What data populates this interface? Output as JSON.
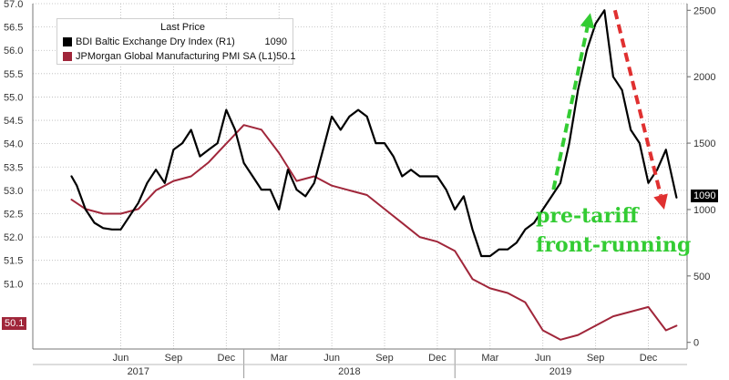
{
  "chart_data": {
    "type": "line",
    "title": "",
    "legend": {
      "header": "Last Price",
      "placement": "top-left",
      "entries": [
        {
          "name": "BDI Baltic Exchange Dry Index  (R1)",
          "last": "1090",
          "color": "#000000"
        },
        {
          "name": "JPMorgan Global Manufacturing PMI SA  (L1)",
          "last": "50.1",
          "color": "#a0263a"
        }
      ]
    },
    "x_ticks": [
      {
        "label": "Jun",
        "t": 5
      },
      {
        "label": "Sep",
        "t": 8
      },
      {
        "label": "Dec",
        "t": 11
      },
      {
        "label": "Mar",
        "t": 14
      },
      {
        "label": "Jun",
        "t": 17
      },
      {
        "label": "Sep",
        "t": 20
      },
      {
        "label": "Dec",
        "t": 23
      },
      {
        "label": "Mar",
        "t": 26
      },
      {
        "label": "Jun",
        "t": 29
      },
      {
        "label": "Sep",
        "t": 32
      },
      {
        "label": "Dec",
        "t": 35
      }
    ],
    "years": [
      {
        "label": "2017",
        "t": 6
      },
      {
        "label": "2018",
        "t": 18
      },
      {
        "label": "2019",
        "t": 30
      }
    ],
    "year_dividers": [
      12,
      24
    ],
    "left_axis": {
      "min": 49.6,
      "max": 57.0,
      "ticks": [
        51.0,
        51.5,
        52.0,
        52.5,
        53.0,
        53.5,
        54.0,
        54.5,
        55.0,
        55.5,
        56.0,
        56.5,
        57.0
      ],
      "labels": [
        "51.0",
        "51.5",
        "52.0",
        "52.5",
        "53.0",
        "53.5",
        "54.0",
        "54.5",
        "55.0",
        "55.5",
        "56.0",
        "56.5",
        "57.0"
      ]
    },
    "right_axis": {
      "min": -50,
      "max": 2550,
      "ticks": [
        0,
        500,
        1000,
        1500,
        2000,
        2500
      ],
      "labels": [
        "0",
        "500",
        "1000",
        "1500",
        "2000",
        "2500"
      ]
    },
    "grid": true,
    "series": [
      {
        "name": "JPMorgan Global Manufacturing PMI SA  (L1)",
        "axis": "left",
        "color": "#a0263a",
        "x": [
          2.2,
          3,
          4,
          5,
          6,
          7,
          8,
          9,
          10,
          11,
          12,
          13,
          14,
          15,
          16,
          17,
          18,
          19,
          20,
          21,
          22,
          23,
          24,
          25,
          26,
          27,
          28,
          29,
          30,
          31,
          32,
          33,
          34,
          35,
          36,
          36.6
        ],
        "y": [
          52.8,
          52.6,
          52.5,
          52.5,
          52.6,
          53.0,
          53.2,
          53.3,
          53.6,
          54.0,
          54.4,
          54.3,
          53.8,
          53.2,
          53.3,
          53.1,
          53.0,
          52.9,
          52.6,
          52.3,
          52.0,
          51.9,
          51.7,
          51.1,
          50.9,
          50.8,
          50.6,
          50.0,
          49.8,
          49.9,
          50.1,
          50.3,
          50.4,
          50.5,
          50.0,
          50.1
        ]
      },
      {
        "name": "BDI Baltic Exchange Dry Index  (R1)",
        "axis": "right",
        "color": "#000000",
        "x": [
          2.2,
          2.5,
          3.0,
          3.5,
          4.0,
          4.5,
          5.0,
          5.5,
          6.0,
          6.5,
          7.0,
          7.5,
          8.0,
          8.5,
          9.0,
          9.5,
          10.0,
          10.5,
          11.0,
          11.5,
          12.0,
          12.5,
          13.0,
          13.5,
          14.0,
          14.5,
          15.0,
          15.5,
          16.0,
          16.5,
          17.0,
          17.5,
          18.0,
          18.5,
          19.0,
          19.5,
          20.0,
          20.5,
          21.0,
          21.5,
          22.0,
          22.5,
          23.0,
          23.5,
          24.0,
          24.5,
          25.0,
          25.5,
          26.0,
          26.5,
          27.0,
          27.5,
          28.0,
          28.5,
          29.0,
          29.5,
          30.0,
          30.5,
          31.0,
          31.5,
          32.0,
          32.5,
          33.0,
          33.5,
          34.0,
          34.5,
          35.0,
          35.5,
          36.0,
          36.6
        ],
        "y": [
          1250,
          1180,
          1000,
          900,
          860,
          850,
          850,
          950,
          1050,
          1200,
          1300,
          1200,
          1450,
          1500,
          1600,
          1400,
          1450,
          1500,
          1750,
          1600,
          1350,
          1250,
          1150,
          1150,
          1000,
          1300,
          1150,
          1100,
          1200,
          1450,
          1700,
          1600,
          1700,
          1750,
          1700,
          1500,
          1500,
          1400,
          1250,
          1300,
          1250,
          1250,
          1250,
          1150,
          1000,
          1100,
          850,
          650,
          650,
          700,
          700,
          750,
          850,
          900,
          1000,
          1100,
          1200,
          1500,
          1900,
          2200,
          2400,
          2500,
          2000,
          1900,
          1600,
          1500,
          1200,
          1300,
          1450,
          1090
        ]
      }
    ],
    "annotations": [
      {
        "text": "pre-tariff",
        "color": "#33cc33"
      },
      {
        "text": "front-running",
        "color": "#33cc33"
      }
    ],
    "badges": [
      {
        "text": "1090",
        "axis": "right",
        "value": 1090
      },
      {
        "text": "50.1",
        "axis": "left",
        "value": 50.1
      }
    ]
  }
}
